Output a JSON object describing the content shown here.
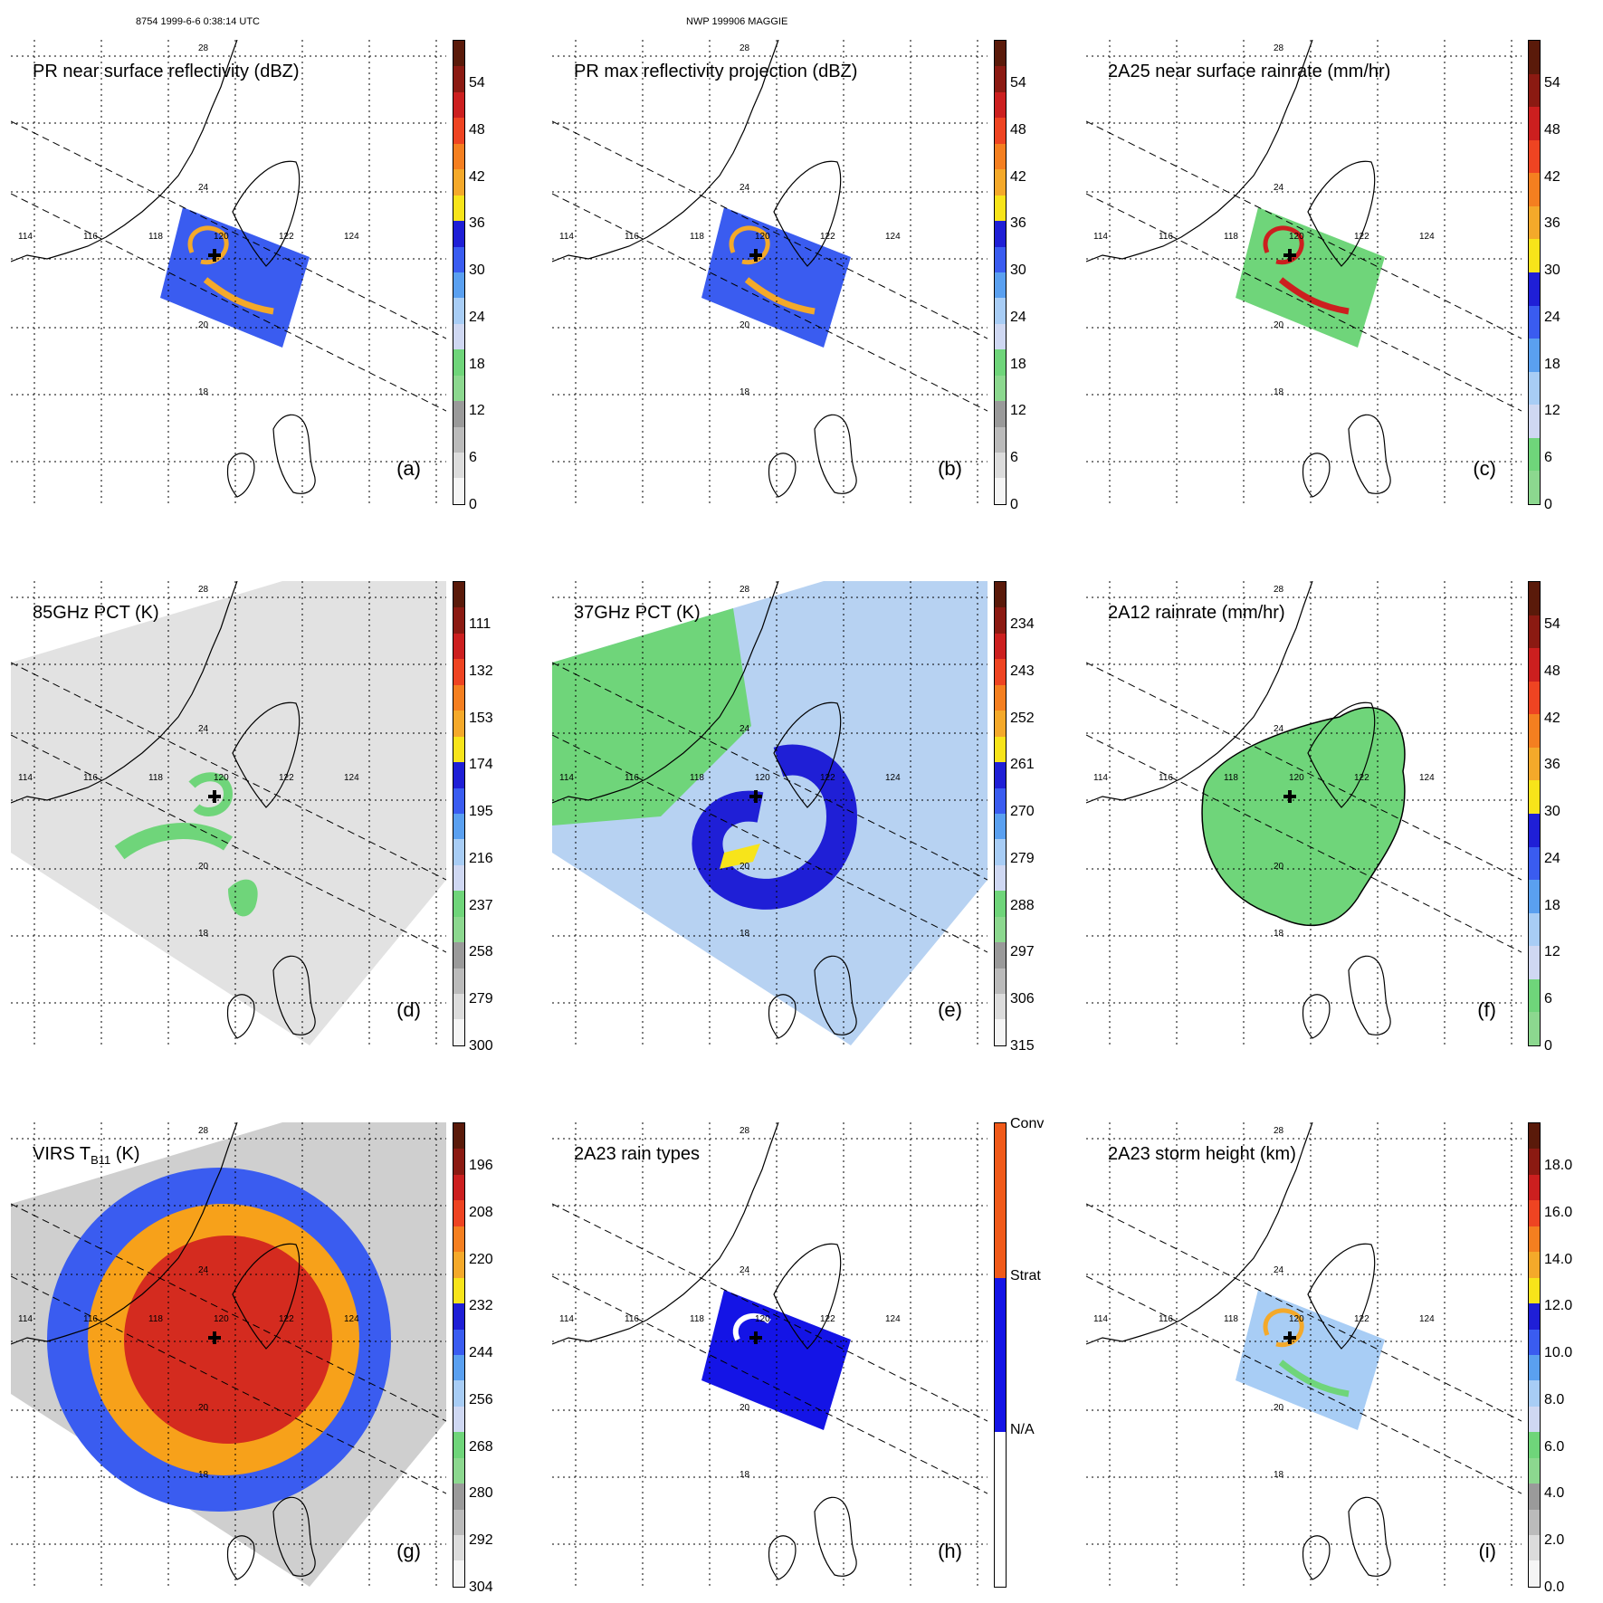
{
  "header": {
    "left_text": "8754 1999-6-6 0:38:14 UTC",
    "center_text": "NWP 199906 MAGGIE"
  },
  "map_labels": {
    "lat": [
      "28",
      "24",
      "20",
      "18"
    ],
    "lon": [
      "114",
      "116",
      "118",
      "120",
      "122",
      "124"
    ]
  },
  "panels": [
    {
      "id": "a",
      "title": "PR near surface reflectivity (dBZ)",
      "label": "(a)",
      "colorbar": {
        "ticks": [
          "54",
          "48",
          "42",
          "36",
          "30",
          "24",
          "18",
          "12",
          "6",
          "0"
        ],
        "colors": [
          "#5a1a0a",
          "#8b1a12",
          "#cc1f1f",
          "#ee4422",
          "#f47f20",
          "#f4a92a",
          "#f7e41a",
          "#1f1fd6",
          "#3a5cf0",
          "#5aa0f0",
          "#a8cdf5",
          "#cfd8f2",
          "#6fd57a",
          "#8cd88f",
          "#9a9a9a",
          "#bbbbbb",
          "#dcdcdc",
          "#f5f5f5"
        ]
      }
    },
    {
      "id": "b",
      "title": "PR max reflectivity projection (dBZ)",
      "label": "(b)",
      "colorbar": {
        "ticks": [
          "54",
          "48",
          "42",
          "36",
          "30",
          "24",
          "18",
          "12",
          "6",
          "0"
        ],
        "colors": [
          "#5a1a0a",
          "#8b1a12",
          "#cc1f1f",
          "#ee4422",
          "#f47f20",
          "#f4a92a",
          "#f7e41a",
          "#1f1fd6",
          "#3a5cf0",
          "#5aa0f0",
          "#a8cdf5",
          "#cfd8f2",
          "#6fd57a",
          "#8cd88f",
          "#9a9a9a",
          "#bbbbbb",
          "#dcdcdc",
          "#f5f5f5"
        ]
      }
    },
    {
      "id": "c",
      "title": "2A25 near surface rainrate (mm/hr)",
      "label": "(c)",
      "colorbar": {
        "ticks": [
          "54",
          "48",
          "42",
          "36",
          "30",
          "24",
          "18",
          "12",
          "6",
          "0"
        ],
        "colors": [
          "#5a1a0a",
          "#8b1a12",
          "#cc1f1f",
          "#ee4422",
          "#f47f20",
          "#f4a92a",
          "#f7e41a",
          "#1f1fd6",
          "#3a5cf0",
          "#5aa0f0",
          "#a8cdf5",
          "#cfd8f2",
          "#6fd57a",
          "#8cd88f"
        ]
      }
    },
    {
      "id": "d",
      "title": "85GHz PCT (K)",
      "label": "(d)",
      "colorbar": {
        "ticks": [
          "111",
          "132",
          "153",
          "174",
          "195",
          "216",
          "237",
          "258",
          "279",
          "300"
        ],
        "colors": [
          "#5a1a0a",
          "#8b1a12",
          "#cc1f1f",
          "#ee4422",
          "#f47f20",
          "#f4a92a",
          "#f7e41a",
          "#1f1fd6",
          "#3a5cf0",
          "#5aa0f0",
          "#a8cdf5",
          "#cfd8f2",
          "#6fd57a",
          "#8cd88f",
          "#9a9a9a",
          "#bbbbbb",
          "#dcdcdc",
          "#f5f5f5"
        ]
      }
    },
    {
      "id": "e",
      "title": "37GHz PCT (K)",
      "label": "(e)",
      "colorbar": {
        "ticks": [
          "234",
          "243",
          "252",
          "261",
          "270",
          "279",
          "288",
          "297",
          "306",
          "315"
        ],
        "colors": [
          "#5a1a0a",
          "#8b1a12",
          "#cc1f1f",
          "#ee4422",
          "#f47f20",
          "#f4a92a",
          "#f7e41a",
          "#1f1fd6",
          "#3a5cf0",
          "#5aa0f0",
          "#a8cdf5",
          "#cfd8f2",
          "#6fd57a",
          "#8cd88f",
          "#9a9a9a",
          "#bbbbbb",
          "#dcdcdc",
          "#f5f5f5"
        ]
      }
    },
    {
      "id": "f",
      "title": "2A12 rainrate (mm/hr)",
      "label": "(f)",
      "colorbar": {
        "ticks": [
          "54",
          "48",
          "42",
          "36",
          "30",
          "24",
          "18",
          "12",
          "6",
          "0"
        ],
        "colors": [
          "#5a1a0a",
          "#8b1a12",
          "#cc1f1f",
          "#ee4422",
          "#f47f20",
          "#f4a92a",
          "#f7e41a",
          "#1f1fd6",
          "#3a5cf0",
          "#5aa0f0",
          "#a8cdf5",
          "#cfd8f2",
          "#6fd57a",
          "#8cd88f"
        ]
      }
    },
    {
      "id": "g",
      "title": "VIRS T",
      "title_sub": "B11",
      "title_suffix": " (K)",
      "label": "(g)",
      "colorbar": {
        "ticks": [
          "196",
          "208",
          "220",
          "232",
          "244",
          "256",
          "268",
          "280",
          "292",
          "304"
        ],
        "colors": [
          "#5a1a0a",
          "#8b1a12",
          "#cc1f1f",
          "#ee4422",
          "#f47f20",
          "#f4a92a",
          "#f7e41a",
          "#1f1fd6",
          "#3a5cf0",
          "#5aa0f0",
          "#a8cdf5",
          "#cfd8f2",
          "#6fd57a",
          "#8cd88f",
          "#9a9a9a",
          "#bbbbbb",
          "#dcdcdc",
          "#f5f5f5"
        ]
      }
    },
    {
      "id": "h",
      "title": "2A23 rain types",
      "label": "(h)",
      "colorbar": {
        "ticks": [
          "Conv",
          "Strat",
          "N/A"
        ],
        "colors": [
          "#f05a1a",
          "#f05a1a",
          "#1414e6",
          "#1414e6",
          "#ffffff",
          "#ffffff"
        ]
      }
    },
    {
      "id": "i",
      "title": "2A23 storm height (km)",
      "label": "(i)",
      "colorbar": {
        "ticks": [
          "18.0",
          "16.0",
          "14.0",
          "12.0",
          "10.0",
          "8.0",
          "6.0",
          "4.0",
          "2.0",
          "0.0"
        ],
        "colors": [
          "#5a1a0a",
          "#8b1a12",
          "#cc1f1f",
          "#ee4422",
          "#f47f20",
          "#f4a92a",
          "#f7e41a",
          "#1f1fd6",
          "#3a5cf0",
          "#5aa0f0",
          "#a8cdf5",
          "#cfd8f2",
          "#6fd57a",
          "#8cd88f",
          "#9a9a9a",
          "#bbbbbb",
          "#dcdcdc",
          "#f5f5f5"
        ]
      }
    }
  ]
}
